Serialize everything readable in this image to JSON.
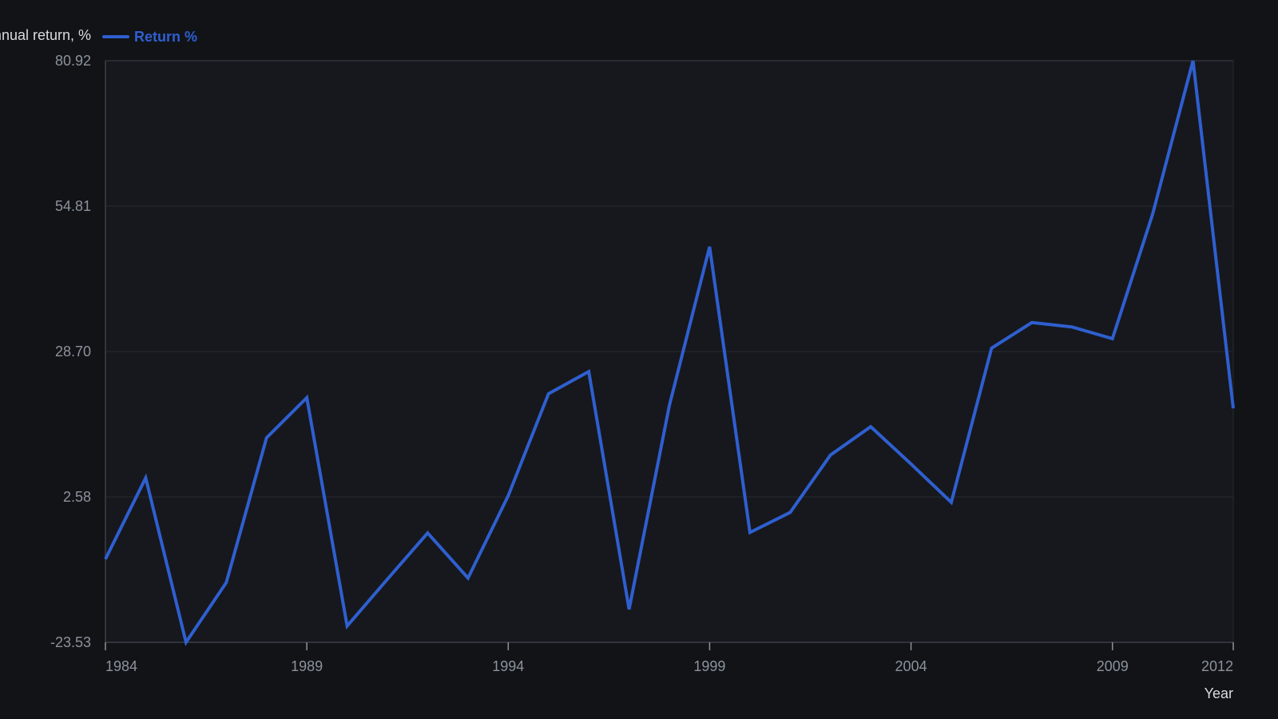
{
  "chart_data": {
    "type": "line",
    "title": "",
    "xlabel": "Year",
    "ylabel": "Annual return, %",
    "xlim": [
      1984,
      2012
    ],
    "ylim": [
      -23.53,
      80.92
    ],
    "x_ticks": [
      1984,
      1989,
      1994,
      1999,
      2004,
      2009,
      2012
    ],
    "y_ticks": [
      "-23.53",
      "2.58",
      "28.70",
      "54.81",
      "80.92"
    ],
    "grid": true,
    "legend": "top-left",
    "colors": {
      "background": "#111317",
      "plot_background": "#16181d",
      "grid": "#262a31",
      "axis": "#3a3f47",
      "series": "#2f5fd0"
    },
    "series": [
      {
        "name": "Return %",
        "x": [
          1984,
          1985,
          1986,
          1987,
          1988,
          1989,
          1990,
          1991,
          1992,
          1993,
          1994,
          1995,
          1996,
          1997,
          1998,
          1999,
          2000,
          2001,
          2002,
          2003,
          2004,
          2005,
          2006,
          2007,
          2008,
          2009,
          2010,
          2011,
          2012
        ],
        "values": [
          -8.6,
          6.0,
          -23.53,
          -12.8,
          13.2,
          20.4,
          -20.6,
          -12.2,
          -3.9,
          -12.0,
          2.8,
          21.1,
          25.1,
          -17.6,
          19.0,
          47.5,
          -3.8,
          -0.2,
          10.1,
          15.2,
          8.5,
          1.6,
          29.3,
          33.9,
          33.1,
          31.0,
          53.4,
          80.92,
          18.5
        ]
      }
    ]
  }
}
